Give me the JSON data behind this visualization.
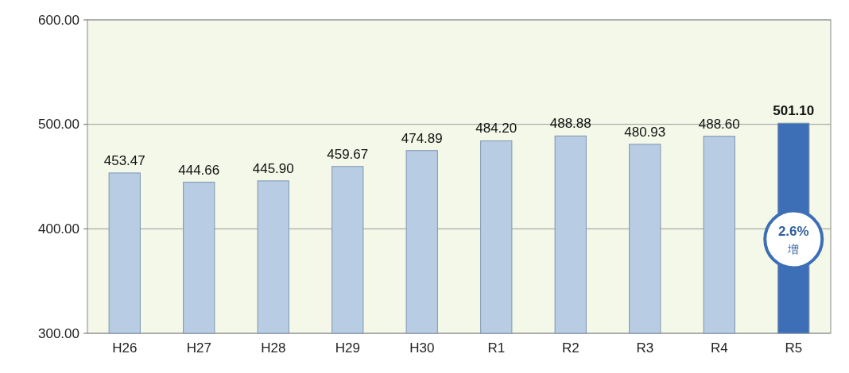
{
  "chart_data": {
    "type": "bar",
    "categories": [
      "H26",
      "H27",
      "H28",
      "H29",
      "H30",
      "R1",
      "R2",
      "R3",
      "R4",
      "R5"
    ],
    "values": [
      453.47,
      444.66,
      445.9,
      459.67,
      474.89,
      484.2,
      488.88,
      480.93,
      488.6,
      501.1
    ],
    "value_labels": [
      "453.47",
      "444.66",
      "445.90",
      "459.67",
      "474.89",
      "484.20",
      "488.88",
      "480.93",
      "488.60",
      "501.10"
    ],
    "colors": [
      "#b8cce4",
      "#b8cce4",
      "#b8cce4",
      "#b8cce4",
      "#b8cce4",
      "#b8cce4",
      "#b8cce4",
      "#b8cce4",
      "#b8cce4",
      "#3d6fb6"
    ],
    "ylim": [
      300,
      600
    ],
    "yticks": [
      {
        "value": 300,
        "label": "300.00"
      },
      {
        "value": 400,
        "label": "400.00"
      },
      {
        "value": 500,
        "label": "500.00"
      },
      {
        "value": 600,
        "label": "600.00"
      }
    ],
    "grid": "y",
    "annotations": [
      "2.6%\n増"
    ]
  }
}
